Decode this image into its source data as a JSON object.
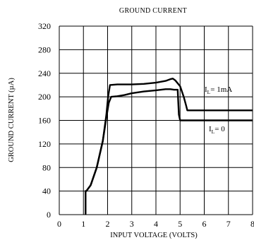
{
  "chart_data": {
    "type": "line",
    "title": "GROUND CURRENT",
    "xlabel": "INPUT VOLTAGE (VOLTS)",
    "ylabel": "GROUND CURRENT (µA)",
    "xlim": [
      0,
      8
    ],
    "ylim": [
      0,
      320
    ],
    "x_ticks": [
      "0",
      "1",
      "2",
      "3",
      "4",
      "5",
      "6",
      "7",
      "8"
    ],
    "y_ticks": [
      "0",
      "40",
      "80",
      "120",
      "160",
      "200",
      "240",
      "280",
      "320"
    ],
    "grid": true,
    "series": [
      {
        "name": "IL = 1mA",
        "label_main": "I",
        "label_sub": "L",
        "label_rest": "= 1mA",
        "x": [
          1.09,
          1.09,
          1.12,
          1.3,
          1.55,
          1.8,
          1.95,
          2.02,
          2.1,
          2.4,
          3.0,
          3.5,
          4.0,
          4.4,
          4.6,
          4.7,
          4.8,
          5.0,
          5.15,
          5.25,
          5.3,
          5.35,
          8.0
        ],
        "y": [
          0,
          40,
          40,
          50,
          80,
          125,
          170,
          200,
          220,
          221,
          221,
          222,
          224,
          227,
          230,
          231,
          228,
          218,
          200,
          185,
          177,
          177,
          177
        ]
      },
      {
        "name": "IL = 0",
        "label_main": "I",
        "label_sub": "L",
        "label_rest": "= 0",
        "x": [
          1.09,
          1.09,
          1.12,
          1.3,
          1.55,
          1.8,
          1.95,
          2.05,
          2.15,
          2.4,
          2.7,
          3.0,
          3.5,
          4.0,
          4.4,
          4.6,
          4.75,
          4.9,
          4.95,
          5.0,
          8.0
        ],
        "y": [
          0,
          40,
          40,
          50,
          80,
          125,
          165,
          190,
          200,
          201,
          203,
          206,
          209,
          211,
          213,
          213,
          212,
          212,
          170,
          160,
          160
        ]
      }
    ]
  }
}
